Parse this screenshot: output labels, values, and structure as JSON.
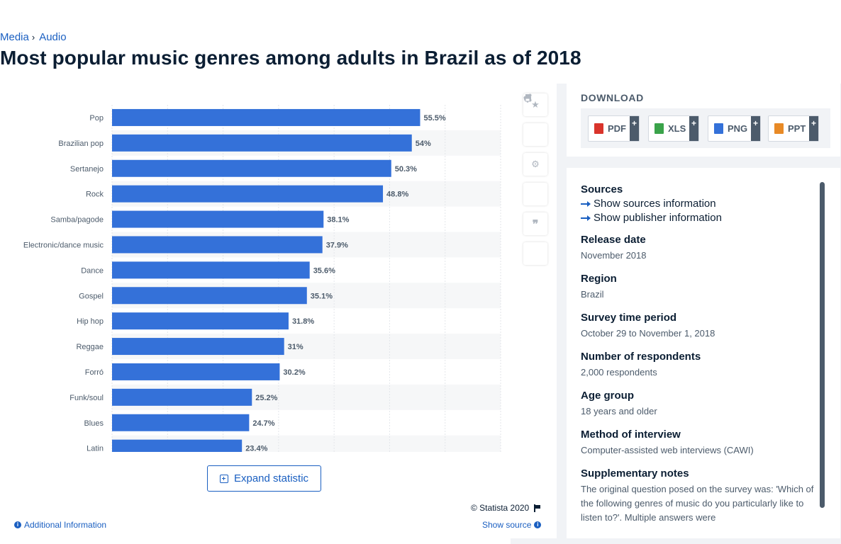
{
  "breadcrumb": {
    "item1": "Media",
    "item2": "Audio",
    "separator": "›"
  },
  "page_title": "Most popular music genres among adults in Brazil as of 2018",
  "chart_data": {
    "type": "bar",
    "orientation": "horizontal",
    "categories": [
      "Pop",
      "Brazilian pop",
      "Sertanejo",
      "Rock",
      "Samba/pagode",
      "Electronic/dance music",
      "Dance",
      "Gospel",
      "Hip hop",
      "Reggae",
      "Forró",
      "Funk/soul",
      "Blues",
      "Latin"
    ],
    "values": [
      55.5,
      54,
      50.3,
      48.8,
      38.1,
      37.9,
      35.6,
      35.1,
      31.8,
      31,
      30.2,
      25.2,
      24.7,
      23.4
    ],
    "value_labels": [
      "55.5%",
      "54%",
      "50.3%",
      "48.8%",
      "38.1%",
      "37.9%",
      "35.6%",
      "35.1%",
      "31.8%",
      "31%",
      "30.2%",
      "25.2%",
      "24.7%",
      "23.4%"
    ],
    "xlim": [
      0,
      70
    ],
    "grid": true,
    "bar_color": "#3471d9"
  },
  "chart_footer": {
    "expand_label": "Expand statistic",
    "copyright": "© Statista 2020",
    "additional_info": "Additional Information",
    "show_source": "Show source"
  },
  "tool_icons": [
    "star-icon",
    "bell-icon",
    "gear-icon",
    "share-icon",
    "quote-icon",
    "print-icon"
  ],
  "download": {
    "title": "DOWNLOAD",
    "buttons": [
      {
        "label": "PDF",
        "icon": "pdf-file-icon",
        "color": "#d9342b"
      },
      {
        "label": "XLS",
        "icon": "xls-file-icon",
        "color": "#3aa34a"
      },
      {
        "label": "PNG",
        "icon": "png-file-icon",
        "color": "#3471d9"
      },
      {
        "label": "PPT",
        "icon": "ppt-file-icon",
        "color": "#e88a26"
      }
    ],
    "plus": "+"
  },
  "info": {
    "sources_label": "Sources",
    "show_sources": "Show sources information",
    "show_publisher": "Show publisher information",
    "release_date_label": "Release date",
    "release_date": "November 2018",
    "region_label": "Region",
    "region": "Brazil",
    "survey_period_label": "Survey time period",
    "survey_period": "October 29 to November 1, 2018",
    "respondents_label": "Number of respondents",
    "respondents": "2,000 respondents",
    "age_group_label": "Age group",
    "age_group": "18 years and older",
    "method_label": "Method of interview",
    "method": "Computer-assisted web interviews (CAWI)",
    "notes_label": "Supplementary notes",
    "notes": "The original question posed on the survey was: 'Which of the following genres of music do you particularly like to listen to?'. Multiple answers were"
  }
}
